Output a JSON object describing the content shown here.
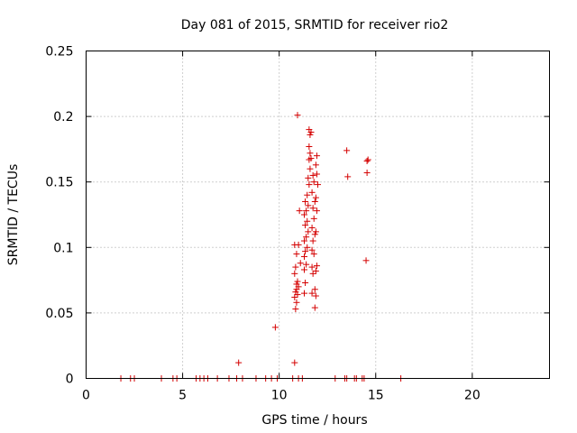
{
  "chart_data": {
    "type": "scatter",
    "title": "Day 081 of 2015, SRMTID for receiver rio2",
    "xlabel": "GPS time / hours",
    "ylabel": "SRMTID / TECUs",
    "xlim": [
      0,
      24
    ],
    "ylim": [
      0,
      0.25
    ],
    "xticks": [
      0,
      5,
      10,
      15,
      20
    ],
    "xtick_labels": [
      "0",
      "5",
      "10",
      "15",
      "20"
    ],
    "yticks": [
      0,
      0.05,
      0.1,
      0.15,
      0.2,
      0.25
    ],
    "ytick_labels": [
      "0",
      "0.05",
      "0.1",
      "0.15",
      "0.2",
      "0.25"
    ],
    "grid": true,
    "marker": "+",
    "color": "#d40000",
    "series": [
      {
        "name": "SRMTID",
        "points": [
          [
            1.8,
            0.0
          ],
          [
            2.3,
            0.0
          ],
          [
            2.5,
            0.0
          ],
          [
            3.9,
            0.0
          ],
          [
            4.5,
            0.0
          ],
          [
            4.7,
            0.0
          ],
          [
            5.7,
            0.0
          ],
          [
            5.9,
            0.0
          ],
          [
            6.1,
            0.0
          ],
          [
            6.3,
            0.0
          ],
          [
            6.8,
            0.0
          ],
          [
            7.4,
            0.0
          ],
          [
            7.8,
            0.0
          ],
          [
            8.1,
            0.0
          ],
          [
            8.8,
            0.0
          ],
          [
            9.3,
            0.0
          ],
          [
            9.6,
            0.0
          ],
          [
            9.9,
            0.0
          ],
          [
            10.7,
            0.0
          ],
          [
            11.0,
            0.0
          ],
          [
            11.2,
            0.0
          ],
          [
            12.9,
            0.0
          ],
          [
            13.4,
            0.0
          ],
          [
            13.5,
            0.0
          ],
          [
            13.9,
            0.0
          ],
          [
            14.0,
            0.0
          ],
          [
            14.3,
            0.0
          ],
          [
            14.4,
            0.0
          ],
          [
            16.3,
            0.0
          ],
          [
            7.9,
            0.012
          ],
          [
            9.8,
            0.039
          ],
          [
            10.8,
            0.012
          ],
          [
            10.85,
            0.053
          ],
          [
            10.9,
            0.058
          ],
          [
            10.8,
            0.062
          ],
          [
            10.95,
            0.064
          ],
          [
            10.85,
            0.066
          ],
          [
            10.9,
            0.068
          ],
          [
            11.0,
            0.07
          ],
          [
            10.9,
            0.072
          ],
          [
            10.95,
            0.074
          ],
          [
            10.8,
            0.08
          ],
          [
            10.85,
            0.085
          ],
          [
            10.9,
            0.095
          ],
          [
            10.8,
            0.102
          ],
          [
            11.0,
            0.102
          ],
          [
            11.05,
            0.128
          ],
          [
            11.1,
            0.088
          ],
          [
            11.3,
            0.065
          ],
          [
            11.35,
            0.073
          ],
          [
            11.3,
            0.083
          ],
          [
            11.4,
            0.087
          ],
          [
            11.3,
            0.093
          ],
          [
            11.35,
            0.097
          ],
          [
            11.45,
            0.1
          ],
          [
            11.3,
            0.105
          ],
          [
            11.4,
            0.108
          ],
          [
            11.5,
            0.112
          ],
          [
            11.35,
            0.117
          ],
          [
            11.45,
            0.12
          ],
          [
            11.3,
            0.125
          ],
          [
            11.4,
            0.128
          ],
          [
            11.5,
            0.132
          ],
          [
            11.35,
            0.135
          ],
          [
            11.45,
            0.14
          ],
          [
            11.55,
            0.148
          ],
          [
            11.5,
            0.153
          ],
          [
            11.6,
            0.16
          ],
          [
            11.55,
            0.167
          ],
          [
            11.6,
            0.172
          ],
          [
            11.55,
            0.177
          ],
          [
            11.6,
            0.186
          ],
          [
            11.55,
            0.19
          ],
          [
            11.65,
            0.188
          ],
          [
            11.7,
            0.065
          ],
          [
            11.75,
            0.08
          ],
          [
            11.7,
            0.085
          ],
          [
            11.8,
            0.095
          ],
          [
            11.75,
            0.105
          ],
          [
            11.85,
            0.11
          ],
          [
            11.7,
            0.115
          ],
          [
            11.8,
            0.122
          ],
          [
            11.75,
            0.13
          ],
          [
            11.85,
            0.135
          ],
          [
            11.7,
            0.142
          ],
          [
            11.8,
            0.15
          ],
          [
            11.75,
            0.155
          ],
          [
            11.65,
            0.168
          ],
          [
            11.7,
            0.098
          ],
          [
            11.85,
            0.054
          ],
          [
            11.9,
            0.063
          ],
          [
            11.85,
            0.068
          ],
          [
            11.9,
            0.082
          ],
          [
            11.95,
            0.086
          ],
          [
            11.9,
            0.112
          ],
          [
            11.95,
            0.128
          ],
          [
            11.9,
            0.138
          ],
          [
            12.0,
            0.148
          ],
          [
            11.95,
            0.156
          ],
          [
            11.9,
            0.163
          ],
          [
            11.95,
            0.17
          ],
          [
            10.95,
            0.201
          ],
          [
            13.5,
            0.174
          ],
          [
            13.55,
            0.154
          ],
          [
            14.5,
            0.09
          ],
          [
            14.55,
            0.157
          ],
          [
            14.55,
            0.166
          ],
          [
            14.6,
            0.167
          ]
        ]
      }
    ]
  }
}
